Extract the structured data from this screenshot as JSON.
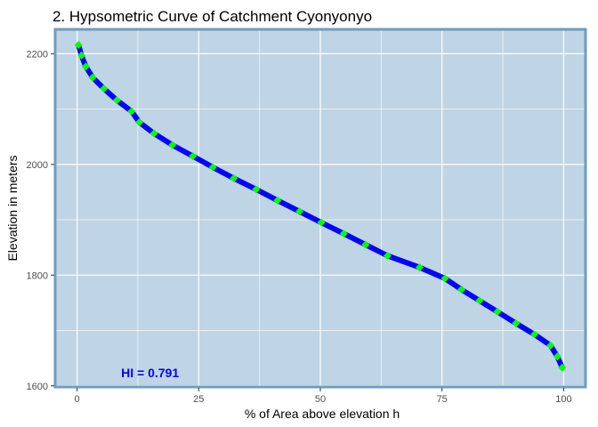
{
  "chart_data": {
    "type": "line",
    "title": "2. Hypsometric Curve  of Catchment Cyonyonyo",
    "xlabel": "% of Area above elevation h",
    "ylabel": "Elevation in meters",
    "xlim": [
      -4.5,
      104.5
    ],
    "ylim": [
      1598,
      2244
    ],
    "x_ticks": [
      0,
      25,
      50,
      75,
      100
    ],
    "x_tick_labels": [
      "0",
      "25",
      "50",
      "75",
      "100"
    ],
    "y_ticks": [
      1600,
      1800,
      2000,
      2200
    ],
    "y_tick_labels": [
      "1600",
      "1800",
      "2000",
      "2200"
    ],
    "grid": true,
    "annotation": {
      "text": "HI = 0.791",
      "x": 15,
      "y": 1624,
      "color": "#0000ff"
    },
    "series": [
      {
        "name": "Hypsometric curve",
        "line_color": "#0000ff",
        "marker_color": "#00ff00",
        "x": [
          0.3,
          0.9,
          1.8,
          3.2,
          5.5,
          8.2,
          11.2,
          12.8,
          15.8,
          19.6,
          23.8,
          27.9,
          32.2,
          36.8,
          41.2,
          45.7,
          50.2,
          54.8,
          59.3,
          63.8,
          70.4,
          75.6,
          79.0,
          82.7,
          86.4,
          90.2,
          94.0,
          97.3,
          98.7,
          99.7
        ],
        "y": [
          2216,
          2197,
          2177,
          2157,
          2137,
          2116,
          2096,
          2076,
          2056,
          2035,
          2015,
          1995,
          1975,
          1955,
          1935,
          1915,
          1895,
          1875,
          1855,
          1835,
          1814,
          1794,
          1774,
          1754,
          1734,
          1713,
          1693,
          1673,
          1653,
          1633
        ]
      }
    ]
  },
  "style": {
    "panel_background": "#bfd4e4",
    "panel_border": "#6f9cc0",
    "grid_color": "#ffffff",
    "line_color": "#0000ff",
    "marker_color": "#00ff00"
  }
}
